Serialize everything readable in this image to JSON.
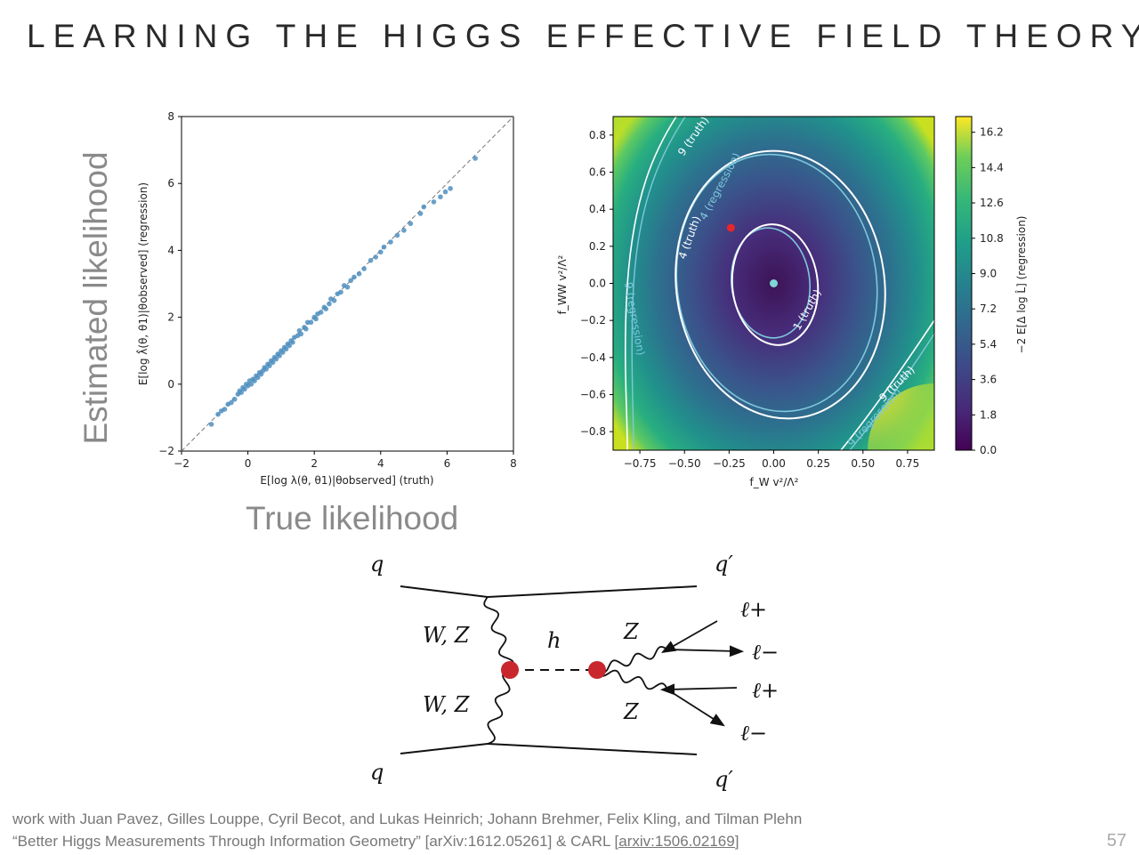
{
  "slide": {
    "title": "LEARNING THE HIGGS EFFECTIVE FIELD THEORY",
    "side_label": "Estimated likelihood",
    "bottom_label": "True likelihood",
    "footer_line1": "work with Juan Pavez, Gilles Louppe, Cyril Becot, and Lukas Heinrich; Johann Brehmer, Felix Kling, and Tilman Plehn",
    "footer_line2_prefix": "“Better Higgs Measurements Through Information Geometry” [arXiv:1612.05261] & CARL  ",
    "footer_link": "[arxiv:1506.02169]",
    "page_number": "57"
  },
  "chart_data": [
    {
      "type": "scatter",
      "title": "",
      "xlabel": "E[log λ(θ, θ1)|θobserved] (truth)",
      "ylabel": "E[log λ̂(θ, θ1)|θobserved] (regression)",
      "xlim": [
        -2,
        8
      ],
      "ylim": [
        -2,
        8
      ],
      "xticks": [
        "−2",
        "0",
        "2",
        "4",
        "6",
        "8"
      ],
      "yticks": [
        "−2",
        "0",
        "2",
        "4",
        "6",
        "8"
      ],
      "reference_line": "y = x",
      "color": "#4f8fbf",
      "points": [
        [
          -1.1,
          -1.2
        ],
        [
          -0.9,
          -0.9
        ],
        [
          -0.8,
          -0.8
        ],
        [
          -0.7,
          -0.75
        ],
        [
          -0.6,
          -0.6
        ],
        [
          -0.5,
          -0.55
        ],
        [
          -0.4,
          -0.45
        ],
        [
          -0.3,
          -0.3
        ],
        [
          -0.25,
          -0.2
        ],
        [
          -0.2,
          -0.25
        ],
        [
          -0.15,
          -0.1
        ],
        [
          -0.1,
          -0.15
        ],
        [
          -0.05,
          0.0
        ],
        [
          0.0,
          -0.05
        ],
        [
          0.05,
          0.1
        ],
        [
          0.1,
          0.0
        ],
        [
          0.15,
          0.15
        ],
        [
          0.2,
          0.1
        ],
        [
          0.25,
          0.25
        ],
        [
          0.3,
          0.2
        ],
        [
          0.35,
          0.35
        ],
        [
          0.4,
          0.3
        ],
        [
          0.45,
          0.4
        ],
        [
          0.5,
          0.5
        ],
        [
          0.55,
          0.45
        ],
        [
          0.6,
          0.6
        ],
        [
          0.65,
          0.55
        ],
        [
          0.7,
          0.7
        ],
        [
          0.75,
          0.65
        ],
        [
          0.8,
          0.8
        ],
        [
          0.85,
          0.75
        ],
        [
          0.9,
          0.9
        ],
        [
          0.95,
          0.85
        ],
        [
          1.0,
          1.0
        ],
        [
          1.05,
          0.95
        ],
        [
          1.1,
          1.1
        ],
        [
          1.15,
          1.05
        ],
        [
          1.2,
          1.2
        ],
        [
          1.25,
          1.15
        ],
        [
          1.3,
          1.3
        ],
        [
          1.35,
          1.25
        ],
        [
          1.4,
          1.4
        ],
        [
          1.5,
          1.45
        ],
        [
          1.55,
          1.6
        ],
        [
          1.6,
          1.5
        ],
        [
          1.7,
          1.7
        ],
        [
          1.75,
          1.65
        ],
        [
          1.8,
          1.85
        ],
        [
          1.9,
          1.85
        ],
        [
          2.0,
          2.0
        ],
        [
          2.05,
          1.95
        ],
        [
          2.1,
          2.1
        ],
        [
          2.2,
          2.15
        ],
        [
          2.3,
          2.3
        ],
        [
          2.35,
          2.25
        ],
        [
          2.45,
          2.4
        ],
        [
          2.5,
          2.55
        ],
        [
          2.6,
          2.5
        ],
        [
          2.7,
          2.7
        ],
        [
          2.8,
          2.75
        ],
        [
          2.9,
          2.95
        ],
        [
          3.0,
          2.9
        ],
        [
          3.1,
          3.1
        ],
        [
          3.2,
          3.2
        ],
        [
          3.35,
          3.3
        ],
        [
          3.5,
          3.45
        ],
        [
          3.7,
          3.7
        ],
        [
          3.85,
          3.8
        ],
        [
          4.0,
          3.95
        ],
        [
          4.1,
          4.1
        ],
        [
          4.3,
          4.25
        ],
        [
          4.5,
          4.45
        ],
        [
          4.7,
          4.6
        ],
        [
          4.9,
          4.8
        ],
        [
          5.2,
          5.1
        ],
        [
          5.3,
          5.3
        ],
        [
          5.6,
          5.45
        ],
        [
          5.8,
          5.6
        ],
        [
          5.95,
          5.75
        ],
        [
          6.1,
          5.85
        ],
        [
          6.85,
          6.75
        ]
      ]
    },
    {
      "type": "heatmap",
      "title": "",
      "xlabel": "f_W v²/Λ²",
      "ylabel": "f_WW v²/Λ²",
      "xlim": [
        -0.9,
        0.9
      ],
      "ylim": [
        -0.9,
        0.9
      ],
      "xticks": [
        "−0.75",
        "−0.50",
        "−0.25",
        "0.00",
        "0.25",
        "0.50",
        "0.75"
      ],
      "yticks": [
        "0.8",
        "0.6",
        "0.4",
        "0.2",
        "0.0",
        "−0.2",
        "−0.4",
        "−0.6",
        "−0.8"
      ],
      "colorbar_label": "−2 E[Δ log L̂] (regression)",
      "colorbar_ticks": [
        "16.2",
        "14.4",
        "12.6",
        "10.8",
        "9.0",
        "7.2",
        "5.4",
        "3.6",
        "1.8",
        "0.0"
      ],
      "colorbar_range": [
        0.0,
        17.0
      ],
      "contour_levels": [
        1,
        4,
        9
      ],
      "contour_labels": [
        "1 (truth)",
        "4 (truth)",
        "4 (regression)",
        "9 (truth)",
        "9 (regression)"
      ],
      "markers": [
        {
          "name": "best-fit",
          "x": 0.0,
          "y": 0.0,
          "color": "#7fd6d6"
        },
        {
          "name": "reference",
          "x": -0.24,
          "y": 0.3,
          "color": "#e8262b"
        }
      ]
    }
  ],
  "diagram": {
    "labels": {
      "q_in_top": "q",
      "q_out_top": "q′",
      "q_in_bottom": "q",
      "q_out_bottom": "q′",
      "wz_top": "W, Z",
      "wz_bottom": "W, Z",
      "higgs": "h",
      "z_top": "Z",
      "z_bottom": "Z",
      "lep1": "ℓ+",
      "lep2": "ℓ−",
      "lep3": "ℓ+",
      "lep4": "ℓ−"
    },
    "vertex_color": "#c8282d"
  }
}
